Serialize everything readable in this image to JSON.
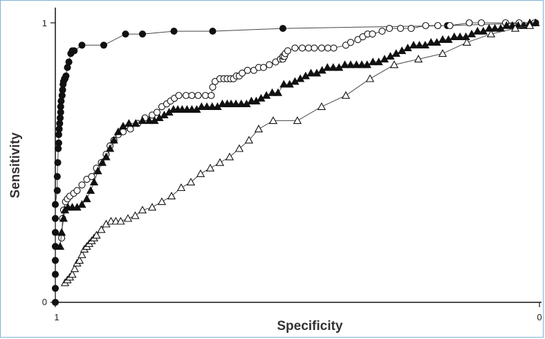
{
  "chart_data": {
    "type": "line",
    "title": "",
    "xlabel": "Specificity",
    "ylabel": "Sensitivity",
    "x_direction": "reversed",
    "xlim": [
      1,
      0
    ],
    "ylim": [
      0,
      1
    ],
    "x_tick_labels": [
      "1",
      "0"
    ],
    "y_tick_labels": [
      "0",
      "1"
    ],
    "grid": false,
    "legend": "none",
    "series": [
      {
        "marker": "filled-circle",
        "color": "#111111",
        "x": [
          1.0,
          1.0,
          1.0,
          1.0,
          1.0,
          1.0,
          1.0,
          1.0,
          0.996,
          0.996,
          0.995,
          0.994,
          0.993,
          0.993,
          0.992,
          0.991,
          0.99,
          0.989,
          0.989,
          0.988,
          0.986,
          0.985,
          0.984,
          0.983,
          0.981,
          0.98,
          0.978,
          0.975,
          0.972,
          0.968,
          0.965,
          0.961,
          0.945,
          0.9,
          0.855,
          0.82,
          0.755,
          0.675,
          0.53,
          0.19,
          0.008
        ],
        "y": [
          0.0,
          0.05,
          0.1,
          0.15,
          0.2,
          0.25,
          0.3,
          0.35,
          0.4,
          0.45,
          0.5,
          0.55,
          0.57,
          0.6,
          0.62,
          0.64,
          0.66,
          0.68,
          0.7,
          0.72,
          0.74,
          0.76,
          0.78,
          0.79,
          0.8,
          0.8,
          0.81,
          0.84,
          0.86,
          0.89,
          0.9,
          0.9,
          0.92,
          0.92,
          0.96,
          0.96,
          0.97,
          0.97,
          0.98,
          0.99,
          1.0
        ]
      },
      {
        "marker": "open-circle",
        "color": "#111111",
        "x": [
          0.987,
          0.985,
          0.983,
          0.979,
          0.975,
          0.97,
          0.962,
          0.955,
          0.945,
          0.935,
          0.925,
          0.915,
          0.905,
          0.895,
          0.887,
          0.879,
          0.87,
          0.86,
          0.845,
          0.83,
          0.815,
          0.8,
          0.79,
          0.78,
          0.77,
          0.762,
          0.754,
          0.745,
          0.73,
          0.718,
          0.705,
          0.69,
          0.678,
          0.675,
          0.67,
          0.66,
          0.652,
          0.645,
          0.638,
          0.632,
          0.626,
          0.62,
          0.614,
          0.603,
          0.59,
          0.58,
          0.57,
          0.558,
          0.545,
          0.535,
          0.53,
          0.53,
          0.527,
          0.525,
          0.52,
          0.505,
          0.49,
          0.477,
          0.465,
          0.45,
          0.437,
          0.425,
          0.4,
          0.39,
          0.375,
          0.365,
          0.355,
          0.345,
          0.325,
          0.31,
          0.287,
          0.265,
          0.235,
          0.21,
          0.185,
          0.145,
          0.12,
          0.07,
          0.042,
          0.01
        ],
        "y": [
          0.23,
          0.3,
          0.33,
          0.36,
          0.37,
          0.38,
          0.39,
          0.4,
          0.42,
          0.44,
          0.45,
          0.48,
          0.5,
          0.53,
          0.56,
          0.58,
          0.6,
          0.61,
          0.62,
          0.64,
          0.66,
          0.67,
          0.68,
          0.7,
          0.71,
          0.72,
          0.73,
          0.74,
          0.74,
          0.74,
          0.74,
          0.74,
          0.74,
          0.77,
          0.79,
          0.8,
          0.8,
          0.8,
          0.8,
          0.8,
          0.81,
          0.81,
          0.82,
          0.83,
          0.83,
          0.84,
          0.84,
          0.85,
          0.86,
          0.87,
          0.87,
          0.88,
          0.88,
          0.89,
          0.9,
          0.91,
          0.91,
          0.91,
          0.91,
          0.91,
          0.91,
          0.91,
          0.92,
          0.93,
          0.94,
          0.95,
          0.96,
          0.96,
          0.97,
          0.98,
          0.98,
          0.98,
          0.99,
          0.99,
          0.99,
          1.0,
          1.0,
          1.0,
          1.0,
          1.0
        ]
      },
      {
        "marker": "filled-triangle",
        "color": "#111111",
        "x": [
          0.99,
          0.987,
          0.983,
          0.98,
          0.974,
          0.965,
          0.955,
          0.945,
          0.935,
          0.927,
          0.92,
          0.912,
          0.903,
          0.895,
          0.887,
          0.879,
          0.87,
          0.86,
          0.848,
          0.834,
          0.82,
          0.806,
          0.795,
          0.785,
          0.775,
          0.765,
          0.756,
          0.747,
          0.738,
          0.728,
          0.718,
          0.708,
          0.698,
          0.687,
          0.676,
          0.665,
          0.655,
          0.645,
          0.637,
          0.627,
          0.616,
          0.605,
          0.595,
          0.585,
          0.575,
          0.564,
          0.552,
          0.54,
          0.528,
          0.516,
          0.505,
          0.494,
          0.483,
          0.472,
          0.46,
          0.449,
          0.438,
          0.426,
          0.414,
          0.402,
          0.39,
          0.378,
          0.367,
          0.356,
          0.344,
          0.332,
          0.32,
          0.308,
          0.296,
          0.284,
          0.272,
          0.26,
          0.248,
          0.236,
          0.224,
          0.212,
          0.2,
          0.188,
          0.176,
          0.164,
          0.152,
          0.14,
          0.128,
          0.116,
          0.104,
          0.092,
          0.08,
          0.068,
          0.056,
          0.044,
          0.032,
          0.02,
          0.008
        ],
        "y": [
          0.2,
          0.25,
          0.3,
          0.33,
          0.34,
          0.34,
          0.34,
          0.35,
          0.37,
          0.4,
          0.43,
          0.47,
          0.5,
          0.52,
          0.55,
          0.58,
          0.61,
          0.63,
          0.64,
          0.64,
          0.65,
          0.65,
          0.65,
          0.66,
          0.67,
          0.68,
          0.69,
          0.69,
          0.69,
          0.69,
          0.69,
          0.69,
          0.7,
          0.7,
          0.7,
          0.7,
          0.71,
          0.71,
          0.71,
          0.71,
          0.71,
          0.71,
          0.72,
          0.72,
          0.73,
          0.74,
          0.75,
          0.75,
          0.78,
          0.78,
          0.79,
          0.8,
          0.81,
          0.82,
          0.82,
          0.83,
          0.84,
          0.84,
          0.84,
          0.85,
          0.85,
          0.85,
          0.85,
          0.85,
          0.86,
          0.86,
          0.87,
          0.88,
          0.89,
          0.9,
          0.91,
          0.92,
          0.92,
          0.92,
          0.93,
          0.93,
          0.94,
          0.94,
          0.95,
          0.95,
          0.95,
          0.96,
          0.97,
          0.97,
          0.98,
          0.98,
          0.98,
          0.99,
          0.99,
          0.99,
          0.99,
          1.0,
          1.0
        ]
      },
      {
        "marker": "open-triangle",
        "color": "#111111",
        "x": [
          0.98,
          0.975,
          0.97,
          0.965,
          0.96,
          0.955,
          0.95,
          0.945,
          0.94,
          0.935,
          0.93,
          0.925,
          0.92,
          0.915,
          0.905,
          0.895,
          0.885,
          0.875,
          0.865,
          0.85,
          0.835,
          0.82,
          0.8,
          0.78,
          0.76,
          0.74,
          0.72,
          0.7,
          0.68,
          0.66,
          0.64,
          0.62,
          0.6,
          0.58,
          0.55,
          0.5,
          0.45,
          0.4,
          0.35,
          0.3,
          0.25,
          0.2,
          0.15,
          0.1,
          0.05,
          0.02
        ],
        "y": [
          0.07,
          0.08,
          0.09,
          0.1,
          0.12,
          0.14,
          0.15,
          0.17,
          0.19,
          0.2,
          0.21,
          0.22,
          0.23,
          0.24,
          0.26,
          0.28,
          0.29,
          0.29,
          0.29,
          0.3,
          0.31,
          0.33,
          0.34,
          0.36,
          0.38,
          0.41,
          0.43,
          0.46,
          0.48,
          0.5,
          0.52,
          0.55,
          0.58,
          0.62,
          0.65,
          0.65,
          0.7,
          0.74,
          0.8,
          0.85,
          0.87,
          0.89,
          0.93,
          0.96,
          0.98,
          0.99
        ]
      }
    ]
  }
}
